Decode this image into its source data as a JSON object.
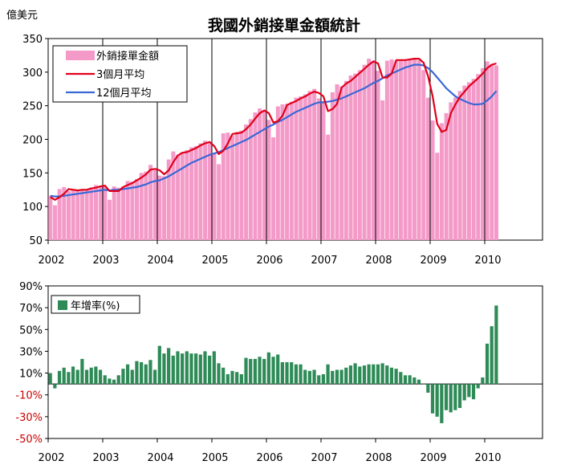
{
  "chart_data": [
    {
      "type": "bar+line",
      "title": "我國外銷接單金額統計",
      "ylabel": "億美元",
      "ylim": [
        50,
        350
      ],
      "yticks": [
        "350",
        "300",
        "250",
        "200",
        "150",
        "100",
        "50"
      ],
      "xticks": [
        "2002",
        "2003",
        "2004",
        "2005",
        "2006",
        "2007",
        "2008",
        "2009",
        "2010"
      ],
      "legend": {
        "placement": "top-left"
      },
      "colors": {
        "bars": "#f49ac8",
        "ma3": "#e0001b",
        "ma12": "#3a67d6"
      },
      "series": [
        {
          "name": "外銷接單金額",
          "kind": "bar",
          "values": [
            116,
            102,
            126,
            129,
            123,
            124,
            124,
            126,
            125,
            128,
            132,
            130,
            130,
            110,
            130,
            128,
            130,
            138,
            137,
            141,
            150,
            152,
            162,
            154,
            146,
            145,
            170,
            182,
            177,
            181,
            184,
            188,
            190,
            194,
            198,
            194,
            178,
            163,
            209,
            210,
            206,
            211,
            213,
            222,
            230,
            240,
            246,
            242,
            229,
            203,
            249,
            252,
            253,
            256,
            262,
            264,
            267,
            272,
            275,
            261,
            257,
            207,
            270,
            282,
            279,
            287,
            295,
            298,
            303,
            311,
            320,
            317,
            302,
            258,
            317,
            319,
            317,
            318,
            319,
            320,
            321,
            318,
            303,
            262,
            228,
            180,
            224,
            239,
            255,
            262,
            272,
            280,
            285,
            290,
            297,
            306,
            316,
            312,
            310
          ]
        },
        {
          "name": "3個月平均",
          "kind": "line",
          "values": [
            114,
            110,
            114,
            119,
            126,
            125,
            124,
            125,
            125,
            127,
            128,
            130,
            131,
            123,
            123,
            123,
            129,
            132,
            135,
            139,
            143,
            148,
            155,
            156,
            154,
            148,
            154,
            166,
            176,
            180,
            181,
            184,
            187,
            191,
            194,
            196,
            190,
            178,
            183,
            194,
            208,
            209,
            210,
            215,
            222,
            231,
            239,
            243,
            239,
            225,
            227,
            235,
            251,
            254,
            257,
            261,
            264,
            268,
            271,
            269,
            264,
            242,
            245,
            253,
            277,
            283,
            287,
            293,
            299,
            305,
            311,
            316,
            313,
            292,
            292,
            298,
            318,
            318,
            318,
            319,
            320,
            320,
            314,
            294,
            264,
            223,
            211,
            214,
            239,
            252,
            263,
            271,
            279,
            285,
            291,
            298,
            306,
            311,
            313
          ]
        },
        {
          "name": "12個月平均",
          "kind": "line",
          "values": [
            116,
            115,
            115,
            116,
            117,
            118,
            119,
            120,
            121,
            122,
            123,
            124,
            125,
            124,
            125,
            125,
            126,
            127,
            128,
            129,
            131,
            133,
            136,
            138,
            139,
            142,
            145,
            149,
            153,
            157,
            161,
            165,
            168,
            171,
            174,
            177,
            179,
            181,
            184,
            187,
            190,
            193,
            196,
            199,
            203,
            207,
            211,
            215,
            219,
            222,
            226,
            229,
            233,
            237,
            241,
            244,
            247,
            250,
            253,
            255,
            255,
            256,
            257,
            259,
            261,
            264,
            267,
            270,
            273,
            276,
            280,
            284,
            287,
            291,
            295,
            298,
            301,
            304,
            307,
            309,
            311,
            311,
            310,
            306,
            300,
            292,
            284,
            276,
            270,
            264,
            260,
            257,
            254,
            252,
            252,
            253,
            258,
            264,
            272
          ]
        }
      ]
    },
    {
      "type": "bar",
      "ylim": [
        -50,
        90
      ],
      "yticks": [
        "90%",
        "70%",
        "50%",
        "30%",
        "10%",
        "-10%",
        "-30%",
        "-50%"
      ],
      "xticks": [
        "2002",
        "2003",
        "2004",
        "2005",
        "2006",
        "2007",
        "2008",
        "2009",
        "2010"
      ],
      "legend": {
        "placement": "top-left"
      },
      "colors": {
        "bars": "#2e8b57",
        "positive_tick": "#000000",
        "negative_tick": "#cc0000"
      },
      "series": [
        {
          "name": "年增率(%)",
          "values": [
            10,
            -4,
            12,
            15,
            11,
            16,
            13,
            23,
            13,
            15,
            16,
            13,
            8,
            5,
            4,
            8,
            14,
            18,
            13,
            21,
            20,
            18,
            22,
            13,
            35,
            28,
            33,
            26,
            30,
            28,
            30,
            28,
            28,
            27,
            30,
            26,
            30,
            19,
            15,
            9,
            12,
            11,
            9,
            24,
            23,
            23,
            25,
            23,
            29,
            25,
            27,
            20,
            20,
            20,
            18,
            18,
            13,
            12,
            13,
            8,
            9,
            18,
            12,
            13,
            13,
            15,
            17,
            19,
            16,
            17,
            18,
            18,
            18,
            19,
            17,
            15,
            14,
            11,
            8,
            8,
            6,
            4,
            0,
            -8,
            -27,
            -30,
            -36,
            -24,
            -26,
            -24,
            -22,
            -15,
            -12,
            -14,
            -4,
            6,
            37,
            53,
            72
          ]
        }
      ]
    }
  ]
}
